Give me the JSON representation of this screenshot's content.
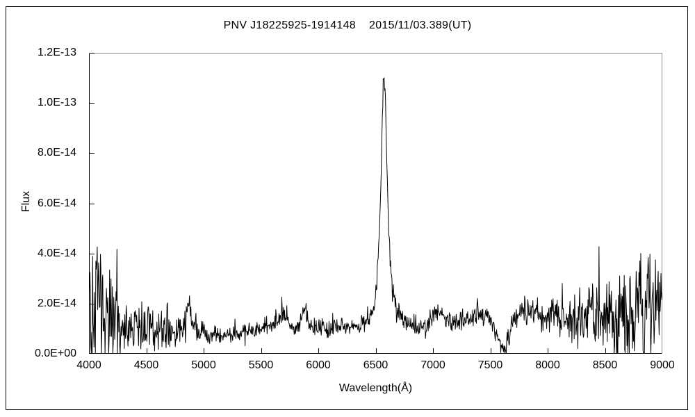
{
  "chart_data": {
    "type": "line",
    "title": "PNV J18225925-1914148    2015/11/03.389(UT)",
    "xlabel": "Wavelength(Å)",
    "ylabel": "Flux",
    "xlim": [
      4000,
      9000
    ],
    "ylim": [
      0,
      1.2e-13
    ],
    "x_ticks": [
      4000,
      4500,
      5000,
      5500,
      6000,
      6500,
      7000,
      7500,
      8000,
      8500,
      9000
    ],
    "y_ticks": {
      "labels": [
        "0.0E+00",
        "2.0E-14",
        "4.0E-14",
        "6.0E-14",
        "8.0E-14",
        "1.0E-13",
        "1.2E-13"
      ],
      "values_e14": [
        0,
        2,
        4,
        6,
        8,
        10,
        12
      ]
    },
    "grid": false,
    "legend": "none",
    "line_color": "#000000",
    "axis_color": "#000000",
    "top_right_frame_color": "#8a8a8a",
    "flux_unit": 1e-14,
    "emission_peak": {
      "wavelength_A": 6575,
      "peak_flux_e14": 11.25
    },
    "other_features": [
      {
        "wavelength_A": 4860,
        "flux_e14": 2.2,
        "kind": "emission bump"
      },
      {
        "wavelength_A": 5690,
        "flux_e14": 1.7,
        "kind": "emission bump"
      },
      {
        "wavelength_A": 5878,
        "flux_e14": 2.1,
        "kind": "emission bump"
      },
      {
        "wavelength_A": 7065,
        "flux_e14": 1.8,
        "kind": "emission bump"
      },
      {
        "wavelength_A": 7610,
        "flux_e14": 0.15,
        "kind": "deep absorption dip"
      }
    ],
    "continuum_anchors_e14": [
      [
        4000,
        1.7
      ],
      [
        4100,
        1.4
      ],
      [
        4200,
        1.2
      ],
      [
        4300,
        1.1
      ],
      [
        4400,
        1.0
      ],
      [
        4550,
        0.95
      ],
      [
        4700,
        0.9
      ],
      [
        4800,
        1.0
      ],
      [
        4840,
        1.3
      ],
      [
        4860,
        2.15
      ],
      [
        4885,
        1.4
      ],
      [
        4920,
        1.0
      ],
      [
        5000,
        0.8
      ],
      [
        5100,
        0.75
      ],
      [
        5250,
        0.8
      ],
      [
        5400,
        0.9
      ],
      [
        5550,
        1.05
      ],
      [
        5640,
        1.3
      ],
      [
        5690,
        1.65
      ],
      [
        5740,
        1.2
      ],
      [
        5800,
        1.1
      ],
      [
        5850,
        1.35
      ],
      [
        5878,
        2.1
      ],
      [
        5910,
        1.3
      ],
      [
        5960,
        1.1
      ],
      [
        6100,
        1.0
      ],
      [
        6250,
        1.1
      ],
      [
        6380,
        1.15
      ],
      [
        6440,
        1.35
      ],
      [
        6480,
        1.8
      ],
      [
        6510,
        2.8
      ],
      [
        6535,
        5.2
      ],
      [
        6552,
        8.2
      ],
      [
        6566,
        10.6
      ],
      [
        6574,
        11.25
      ],
      [
        6584,
        10.2
      ],
      [
        6598,
        7.6
      ],
      [
        6612,
        5.2
      ],
      [
        6628,
        3.7
      ],
      [
        6648,
        2.6
      ],
      [
        6672,
        1.95
      ],
      [
        6705,
        1.55
      ],
      [
        6745,
        1.3
      ],
      [
        6800,
        1.15
      ],
      [
        6860,
        0.9
      ],
      [
        6910,
        1.05
      ],
      [
        6970,
        1.3
      ],
      [
        7030,
        1.6
      ],
      [
        7065,
        1.8
      ],
      [
        7110,
        1.45
      ],
      [
        7170,
        1.3
      ],
      [
        7230,
        1.4
      ],
      [
        7290,
        1.5
      ],
      [
        7350,
        1.35
      ],
      [
        7420,
        1.5
      ],
      [
        7480,
        1.4
      ],
      [
        7530,
        1.1
      ],
      [
        7570,
        0.7
      ],
      [
        7600,
        0.25
      ],
      [
        7620,
        0.15
      ],
      [
        7650,
        0.55
      ],
      [
        7690,
        1.1
      ],
      [
        7730,
        1.5
      ],
      [
        7780,
        1.7
      ],
      [
        7840,
        1.6
      ],
      [
        7900,
        1.5
      ],
      [
        7960,
        1.55
      ],
      [
        8050,
        1.5
      ],
      [
        8150,
        1.45
      ],
      [
        8250,
        1.55
      ],
      [
        8350,
        1.6
      ],
      [
        8450,
        1.7
      ],
      [
        8550,
        1.7
      ],
      [
        8650,
        1.8
      ],
      [
        8750,
        1.75
      ],
      [
        8850,
        1.8
      ],
      [
        8950,
        1.75
      ],
      [
        9000,
        1.9
      ]
    ],
    "noise_halfamp_anchors_e14": [
      [
        4000,
        2.4
      ],
      [
        4060,
        2.7
      ],
      [
        4130,
        2.1
      ],
      [
        4200,
        1.7
      ],
      [
        4300,
        1.3
      ],
      [
        4400,
        1.0
      ],
      [
        4500,
        0.8
      ],
      [
        4650,
        0.65
      ],
      [
        4800,
        0.55
      ],
      [
        4900,
        0.5
      ],
      [
        5000,
        0.4
      ],
      [
        5150,
        0.32
      ],
      [
        5300,
        0.3
      ],
      [
        5450,
        0.32
      ],
      [
        5600,
        0.35
      ],
      [
        5750,
        0.35
      ],
      [
        5900,
        0.35
      ],
      [
        6050,
        0.32
      ],
      [
        6200,
        0.3
      ],
      [
        6350,
        0.32
      ],
      [
        6500,
        0.35
      ],
      [
        6600,
        0.4
      ],
      [
        6700,
        0.38
      ],
      [
        6850,
        0.35
      ],
      [
        7000,
        0.35
      ],
      [
        7150,
        0.38
      ],
      [
        7300,
        0.42
      ],
      [
        7450,
        0.42
      ],
      [
        7600,
        0.3
      ],
      [
        7700,
        0.5
      ],
      [
        7800,
        0.55
      ],
      [
        7900,
        0.58
      ],
      [
        8000,
        0.62
      ],
      [
        8100,
        0.72
      ],
      [
        8200,
        0.85
      ],
      [
        8300,
        1.05
      ],
      [
        8400,
        1.25
      ],
      [
        8500,
        1.55
      ],
      [
        8600,
        1.8
      ],
      [
        8700,
        1.95
      ],
      [
        8800,
        2.05
      ],
      [
        8900,
        2.15
      ],
      [
        9000,
        2.3
      ]
    ],
    "samples": 1250,
    "seed": 7
  }
}
